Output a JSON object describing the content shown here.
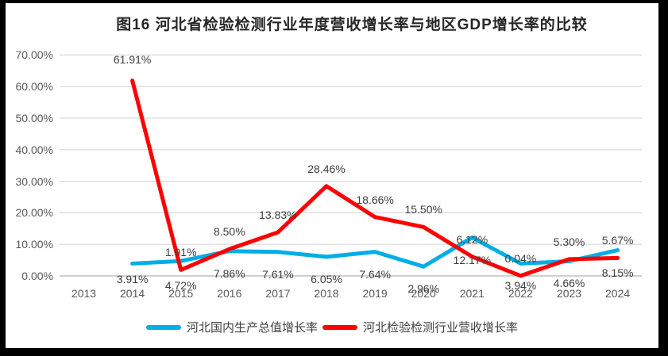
{
  "colors": {
    "frame": "#000000",
    "background": "#FFFFFF",
    "grid": "#D9D9D9",
    "axis_line": "#C0C0C0",
    "tick_text": "#595959",
    "data_label_text": "#3F3F3F",
    "title_text": "#262626",
    "gdp_line": "#00AEE6",
    "revenue_line": "#FF0000"
  },
  "chart_data": {
    "type": "line",
    "title": "图16 河北省检验检测行业年度营收增长率与地区GDP增长率的比较",
    "x_categories": [
      "2013",
      "2014",
      "2015",
      "2016",
      "2017",
      "2018",
      "2019",
      "2020",
      "2021",
      "2022",
      "2023",
      "2024"
    ],
    "ylim": [
      0,
      70
    ],
    "grid": true,
    "legend_position": "bottom",
    "yticks": [
      {
        "value": 0,
        "label": "0.00%"
      },
      {
        "value": 10,
        "label": "10.00%"
      },
      {
        "value": 20,
        "label": "20.00%"
      },
      {
        "value": 30,
        "label": "30.00%"
      },
      {
        "value": 40,
        "label": "40.00%"
      },
      {
        "value": 50,
        "label": "50.00%"
      },
      {
        "value": 60,
        "label": "60.00%"
      },
      {
        "value": 70,
        "label": "70.00%"
      }
    ],
    "series": [
      {
        "id": "gdp",
        "name": "河北国内生产总值增长率",
        "color": "#00AEE6",
        "label_side": "below",
        "points": [
          {
            "x": "2014",
            "y": 3.91,
            "label": "3.91%",
            "label_dy": 20
          },
          {
            "x": "2015",
            "y": 4.72,
            "label": "4.72%",
            "label_dy": 31
          },
          {
            "x": "2016",
            "y": 7.86,
            "label": "7.86%"
          },
          {
            "x": "2017",
            "y": 7.61,
            "label": "7.61%"
          },
          {
            "x": "2018",
            "y": 6.05,
            "label": "6.05%"
          },
          {
            "x": "2019",
            "y": 7.64,
            "label": "7.64%"
          },
          {
            "x": "2020",
            "y": 2.96,
            "label": "2.96%"
          },
          {
            "x": "2021",
            "y": 12.17,
            "label": "12.17%"
          },
          {
            "x": "2022",
            "y": 3.94,
            "label": "3.94%"
          },
          {
            "x": "2023",
            "y": 4.66,
            "label": "4.66%"
          },
          {
            "x": "2024",
            "y": 8.15,
            "label": "8.15%"
          }
        ]
      },
      {
        "id": "revenue",
        "name": "河北检验检测行业营收增长率",
        "color": "#FF0000",
        "label_side": "above",
        "points": [
          {
            "x": "2014",
            "y": 61.91,
            "label": "61.91%",
            "label_dy": -27
          },
          {
            "x": "2015",
            "y": 1.91,
            "label": "1.91%"
          },
          {
            "x": "2016",
            "y": 8.5,
            "label": "8.50%"
          },
          {
            "x": "2017",
            "y": 13.83,
            "label": "13.83%"
          },
          {
            "x": "2018",
            "y": 28.46,
            "label": "28.46%"
          },
          {
            "x": "2019",
            "y": 18.66,
            "label": "18.66%"
          },
          {
            "x": "2020",
            "y": 15.5,
            "label": "15.50%"
          },
          {
            "x": "2021",
            "y": 6.12,
            "label": "6.12%"
          },
          {
            "x": "2022",
            "y": 0.04,
            "label": "0.04%"
          },
          {
            "x": "2023",
            "y": 5.3,
            "label": "5.30%"
          },
          {
            "x": "2024",
            "y": 5.67,
            "label": "5.67%"
          }
        ]
      }
    ]
  }
}
